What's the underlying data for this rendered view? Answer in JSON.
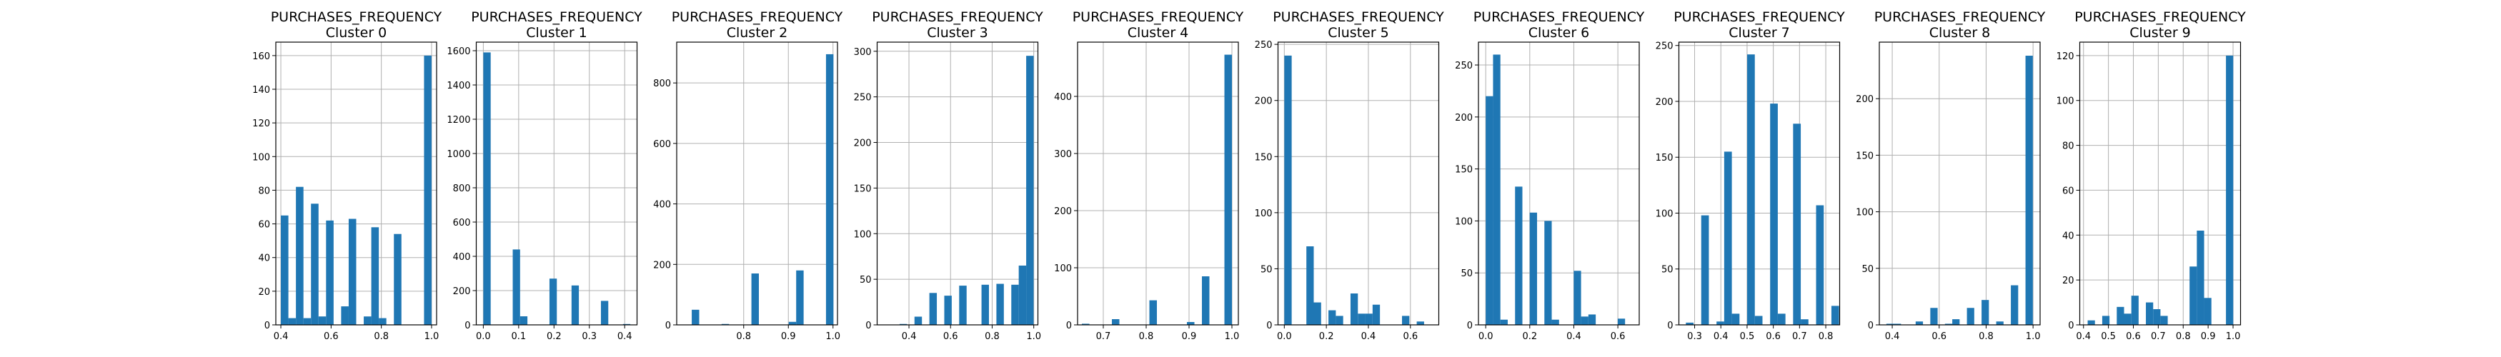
{
  "figure": {
    "accent_color": "#1f77b4",
    "grid": true
  },
  "chart_data": [
    {
      "type": "bar",
      "title_line1": "PURCHASES_FREQUENCY",
      "title_line2": "Cluster 0",
      "xlim": [
        0.38,
        1.02
      ],
      "ylim": [
        0,
        168
      ],
      "xticks": [
        0.4,
        0.6,
        0.8,
        1.0
      ],
      "xtick_labels": [
        "0.4",
        "0.6",
        "0.8",
        "1.0"
      ],
      "yticks": [
        0,
        20,
        40,
        60,
        80,
        100,
        120,
        140,
        160
      ],
      "ytick_labels": [
        "0",
        "20",
        "40",
        "60",
        "80",
        "100",
        "120",
        "140",
        "160"
      ],
      "bins": {
        "start": 0.4,
        "width": 0.03
      },
      "values": [
        65,
        4,
        82,
        4,
        72,
        5,
        62,
        0,
        11,
        63,
        0,
        5,
        58,
        4,
        0,
        54,
        0,
        0,
        0,
        160
      ]
    },
    {
      "type": "bar",
      "title_line1": "PURCHASES_FREQUENCY",
      "title_line2": "Cluster 1",
      "xlim": [
        -0.02,
        0.435
      ],
      "ylim": [
        0,
        1650
      ],
      "xticks": [
        0.0,
        0.1,
        0.2,
        0.3,
        0.4
      ],
      "xtick_labels": [
        "0.0",
        "0.1",
        "0.2",
        "0.3",
        "0.4"
      ],
      "yticks": [
        0,
        200,
        400,
        600,
        800,
        1000,
        1200,
        1400,
        1600
      ],
      "ytick_labels": [
        "0",
        "200",
        "400",
        "600",
        "800",
        "1000",
        "1200",
        "1400",
        "1600"
      ],
      "bins": {
        "start": 0.0,
        "width": 0.0208
      },
      "values": [
        1590,
        0,
        0,
        0,
        440,
        50,
        0,
        0,
        0,
        270,
        0,
        0,
        230,
        0,
        0,
        0,
        140,
        0,
        0,
        5
      ]
    },
    {
      "type": "bar",
      "title_line1": "PURCHASES_FREQUENCY",
      "title_line2": "Cluster 2",
      "xlim": [
        0.65,
        1.01
      ],
      "ylim": [
        0,
        935
      ],
      "xticks": [
        0.8,
        0.9,
        1.0
      ],
      "xtick_labels": [
        "0.8",
        "0.9",
        "1.0"
      ],
      "yticks": [
        0,
        200,
        400,
        600,
        800
      ],
      "ytick_labels": [
        "0",
        "200",
        "400",
        "600",
        "800"
      ],
      "bins": {
        "start": 0.667,
        "width": 0.0167
      },
      "values": [
        0,
        50,
        0,
        0,
        0,
        3,
        0,
        0,
        0,
        170,
        0,
        0,
        0,
        0,
        10,
        180,
        0,
        0,
        0,
        895
      ]
    },
    {
      "type": "bar",
      "title_line1": "PURCHASES_FREQUENCY",
      "title_line2": "Cluster 3",
      "xlim": [
        0.247,
        1.02
      ],
      "ylim": [
        0,
        310
      ],
      "xticks": [
        0.4,
        0.6,
        0.8,
        1.0
      ],
      "xtick_labels": [
        "0.4",
        "0.6",
        "0.8",
        "1.0"
      ],
      "yticks": [
        0,
        50,
        100,
        150,
        200,
        250,
        300
      ],
      "ytick_labels": [
        "0",
        "50",
        "100",
        "150",
        "200",
        "250",
        "300"
      ],
      "bins": {
        "start": 0.2834,
        "width": 0.0358
      },
      "values": [
        0,
        0,
        1,
        0,
        9,
        0,
        35,
        0,
        32,
        0,
        43,
        0,
        0,
        44,
        0,
        45,
        0,
        44,
        65,
        295
      ]
    },
    {
      "type": "bar",
      "title_line1": "PURCHASES_FREQUENCY",
      "title_line2": "Cluster 4",
      "xlim": [
        0.64,
        1.015
      ],
      "ylim": [
        0,
        495
      ],
      "xticks": [
        0.7,
        0.8,
        0.9,
        1.0
      ],
      "xtick_labels": [
        "0.7",
        "0.8",
        "0.9",
        "1.0"
      ],
      "yticks": [
        0,
        100,
        200,
        300,
        400
      ],
      "ytick_labels": [
        "0",
        "100",
        "200",
        "300",
        "400"
      ],
      "bins": {
        "start": 0.65,
        "width": 0.0175
      },
      "values": [
        2,
        0,
        0,
        0,
        10,
        0,
        0,
        0,
        0,
        43,
        0,
        0,
        0,
        0,
        5,
        0,
        85,
        0,
        0,
        473
      ]
    },
    {
      "type": "bar",
      "title_line1": "PURCHASES_FREQUENCY",
      "title_line2": "Cluster 5",
      "xlim": [
        -0.03,
        0.735
      ],
      "ylim": [
        0,
        252
      ],
      "xticks": [
        0.0,
        0.2,
        0.4,
        0.6
      ],
      "xtick_labels": [
        "0.0",
        "0.2",
        "0.4",
        "0.6"
      ],
      "yticks": [
        0,
        50,
        100,
        150,
        200,
        250
      ],
      "ytick_labels": [
        "0",
        "50",
        "100",
        "150",
        "200",
        "250"
      ],
      "bins": {
        "start": 0.0,
        "width": 0.035
      },
      "values": [
        240,
        0,
        0,
        70,
        20,
        0,
        13,
        8,
        0,
        28,
        10,
        10,
        18,
        0,
        0,
        0,
        8,
        0,
        3,
        0
      ]
    },
    {
      "type": "bar",
      "title_line1": "PURCHASES_FREQUENCY",
      "title_line2": "Cluster 6",
      "xlim": [
        -0.033,
        0.697
      ],
      "ylim": [
        0,
        272
      ],
      "xticks": [
        0.0,
        0.2,
        0.4,
        0.6
      ],
      "xtick_labels": [
        "0.0",
        "0.2",
        "0.4",
        "0.6"
      ],
      "yticks": [
        0,
        50,
        100,
        150,
        200,
        250
      ],
      "ytick_labels": [
        "0",
        "50",
        "100",
        "150",
        "200",
        "250"
      ],
      "bins": {
        "start": 0.0,
        "width": 0.0333
      },
      "values": [
        220,
        260,
        5,
        0,
        133,
        0,
        108,
        0,
        100,
        5,
        0,
        0,
        52,
        8,
        10,
        0,
        0,
        0,
        6,
        0
      ]
    },
    {
      "type": "bar",
      "title_line1": "PURCHASES_FREQUENCY",
      "title_line2": "Cluster 7",
      "xlim": [
        0.24,
        0.853
      ],
      "ylim": [
        0,
        253
      ],
      "xticks": [
        0.3,
        0.4,
        0.5,
        0.6,
        0.7,
        0.8
      ],
      "xtick_labels": [
        "0.3",
        "0.4",
        "0.5",
        "0.6",
        "0.7",
        "0.8"
      ],
      "yticks": [
        0,
        50,
        100,
        150,
        200,
        250
      ],
      "ytick_labels": [
        "0",
        "50",
        "100",
        "150",
        "200",
        "250"
      ],
      "bins": {
        "start": 0.2667,
        "width": 0.0292
      },
      "values": [
        2,
        0,
        98,
        0,
        3,
        155,
        10,
        0,
        242,
        8,
        0,
        198,
        10,
        0,
        180,
        5,
        0,
        107,
        0,
        17
      ]
    },
    {
      "type": "bar",
      "title_line1": "PURCHASES_FREQUENCY",
      "title_line2": "Cluster 8",
      "xlim": [
        0.345,
        1.03
      ],
      "ylim": [
        0,
        250
      ],
      "xticks": [
        0.4,
        0.6,
        0.8,
        1.0
      ],
      "xtick_labels": [
        "0.4",
        "0.6",
        "0.8",
        "1.0"
      ],
      "yticks": [
        0,
        50,
        100,
        150,
        200
      ],
      "ytick_labels": [
        "0",
        "50",
        "100",
        "150",
        "200"
      ],
      "bins": {
        "start": 0.375,
        "width": 0.0312
      },
      "values": [
        1,
        1,
        0,
        0,
        3,
        0,
        15,
        0,
        1,
        5,
        0,
        15,
        0,
        22,
        0,
        3,
        0,
        35,
        0,
        238
      ]
    },
    {
      "type": "bar",
      "title_line1": "PURCHASES_FREQUENCY",
      "title_line2": "Cluster 9",
      "xlim": [
        0.385,
        1.03
      ],
      "ylim": [
        0,
        126
      ],
      "xticks": [
        0.4,
        0.5,
        0.6,
        0.7,
        0.8,
        0.9,
        1.0
      ],
      "xtick_labels": [
        "0.4",
        "0.5",
        "0.6",
        "0.7",
        "0.8",
        "0.9",
        "1.0"
      ],
      "yticks": [
        0,
        20,
        40,
        60,
        80,
        100,
        120
      ],
      "ytick_labels": [
        "0",
        "20",
        "40",
        "60",
        "80",
        "100",
        "120"
      ],
      "bins": {
        "start": 0.4167,
        "width": 0.0292
      },
      "values": [
        2,
        0,
        4,
        0,
        8,
        5,
        13,
        0,
        10,
        7,
        4,
        0,
        0,
        0,
        26,
        42,
        12,
        0,
        0,
        120
      ]
    }
  ]
}
